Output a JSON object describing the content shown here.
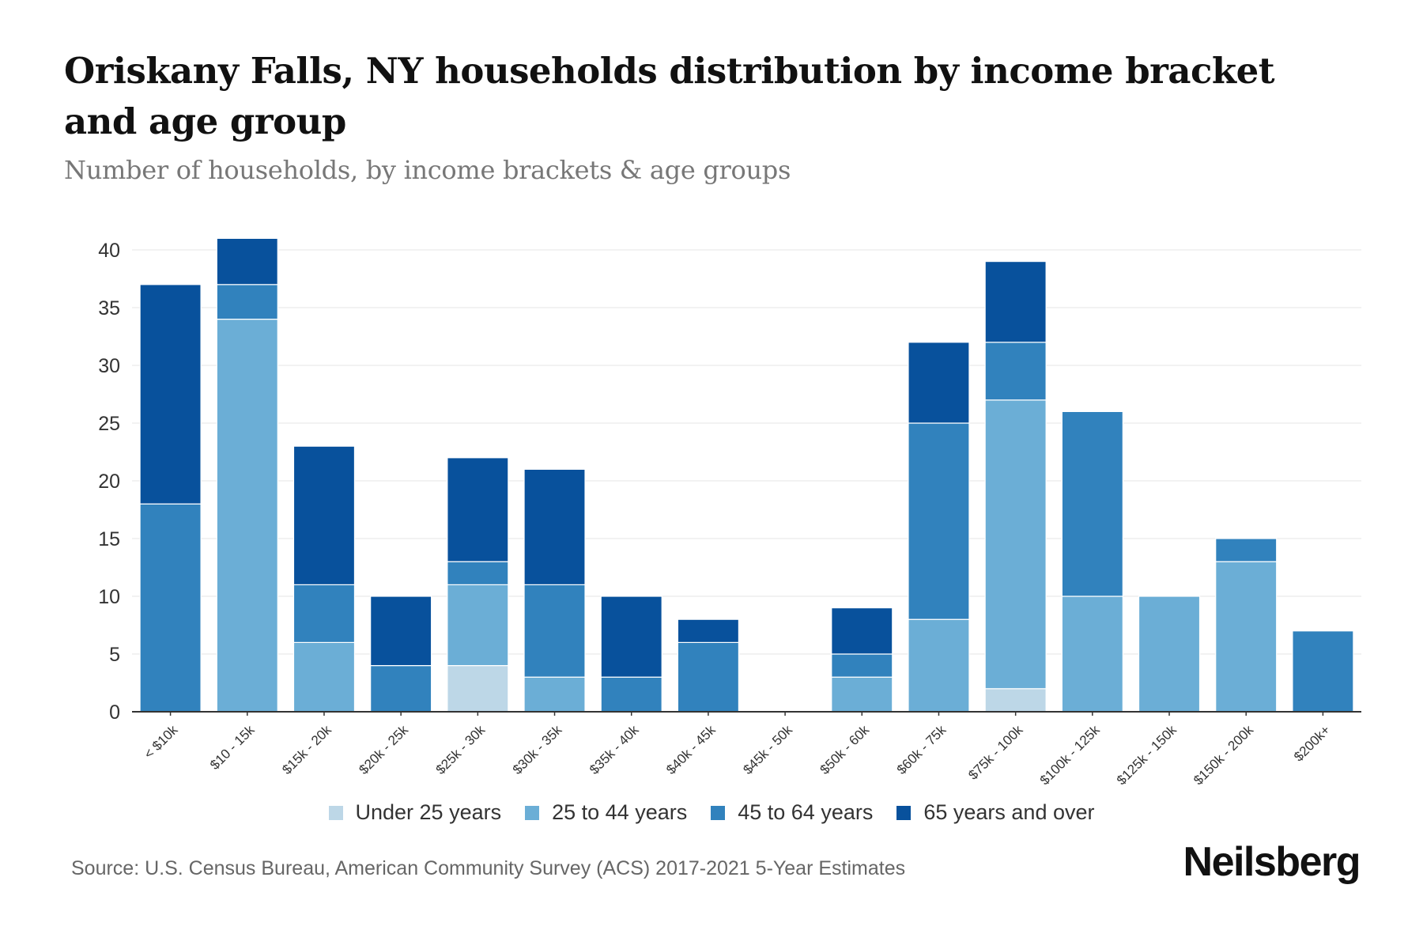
{
  "title": "Oriskany Falls, NY households distribution by income bracket and age group",
  "subtitle": "Number of households, by income brackets & age groups",
  "source": "Source: U.S. Census Bureau, American Community Survey (ACS) 2017-2021 5-Year Estimates",
  "logo": "Neilsberg",
  "chart_data": {
    "type": "bar",
    "stacked": true,
    "title": "Oriskany Falls, NY households distribution by income bracket and age group",
    "subtitle": "Number of households, by income brackets & age groups",
    "xlabel": "",
    "ylabel": "",
    "ylim": [
      0,
      40
    ],
    "yticks": [
      0,
      5,
      10,
      15,
      20,
      25,
      30,
      35,
      40
    ],
    "grid": true,
    "legend_position": "bottom",
    "categories": [
      "< $10k",
      "$10 - 15k",
      "$15k - 20k",
      "$20k - 25k",
      "$25k - 30k",
      "$30k - 35k",
      "$35k - 40k",
      "$40k - 45k",
      "$45k - 50k",
      "$50k - 60k",
      "$60k - 75k",
      "$75k - 100k",
      "$100k - 125k",
      "$125k - 150k",
      "$150k - 200k",
      "$200k+"
    ],
    "series": [
      {
        "name": "Under 25 years",
        "color": "#bdd7e7",
        "values": [
          0,
          0,
          0,
          0,
          4,
          0,
          0,
          0,
          0,
          0,
          0,
          2,
          0,
          0,
          0,
          0
        ]
      },
      {
        "name": "25 to 44 years",
        "color": "#6baed6",
        "values": [
          0,
          34,
          6,
          0,
          7,
          3,
          0,
          0,
          0,
          3,
          8,
          25,
          10,
          10,
          13,
          0
        ]
      },
      {
        "name": "45 to 64 years",
        "color": "#3182bd",
        "values": [
          18,
          3,
          5,
          4,
          2,
          8,
          3,
          6,
          0,
          2,
          17,
          5,
          16,
          0,
          2,
          7
        ]
      },
      {
        "name": "65 years and over",
        "color": "#08519c",
        "values": [
          19,
          4,
          12,
          6,
          9,
          10,
          7,
          2,
          0,
          4,
          7,
          7,
          0,
          0,
          0,
          0
        ]
      }
    ]
  }
}
